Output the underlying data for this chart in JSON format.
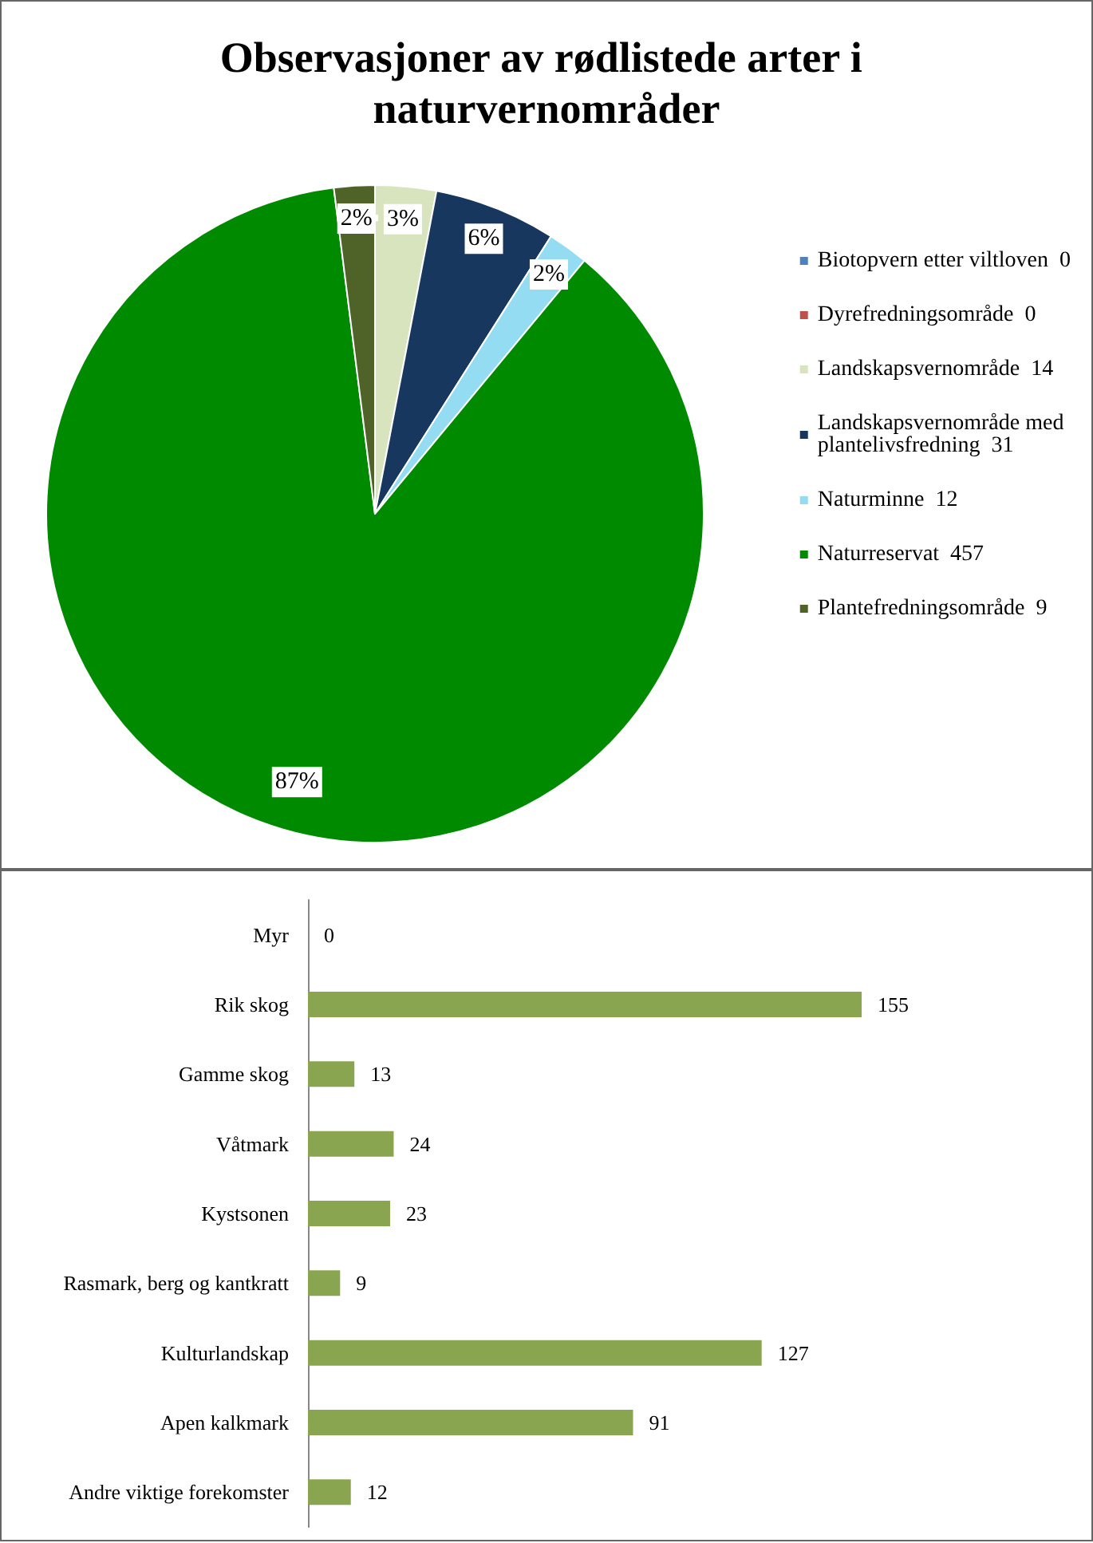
{
  "chart_data": [
    {
      "type": "pie",
      "title": "Observasjoner av rødlistede arter i naturvernområder",
      "categories": [
        "Biotopvern etter viltloven  0",
        "Dyrefredningsområde  0",
        "Landskapsvernområde  14",
        "Landskapsvernområde med plantelivsfredning  31",
        "Naturminne  12",
        "Naturreservat  457",
        "Plantefredningsområde  9"
      ],
      "values": [
        0,
        0,
        3,
        6,
        2,
        87,
        2
      ],
      "colors": [
        "#4f81bd",
        "#c0504d",
        "#d7e4bd",
        "#17375e",
        "#93dcf2",
        "#008a00",
        "#4f6228"
      ],
      "value_labels": [
        null,
        null,
        "3%",
        "6%",
        "2%",
        "87%",
        "2%"
      ],
      "legend": "right"
    },
    {
      "type": "bar",
      "orientation": "horizontal",
      "categories": [
        "Myr",
        "Rik skog",
        "Gamme skog",
        "Våtmark",
        "Kystsonen",
        "Rasmark, berg og kantkratt",
        "Kulturlandskap",
        "Apen kalkmark",
        "Andre viktige forekomster"
      ],
      "values": [
        0,
        155,
        13,
        24,
        23,
        9,
        127,
        91,
        12
      ],
      "color": "#8aa54f",
      "data_labels": true
    }
  ]
}
